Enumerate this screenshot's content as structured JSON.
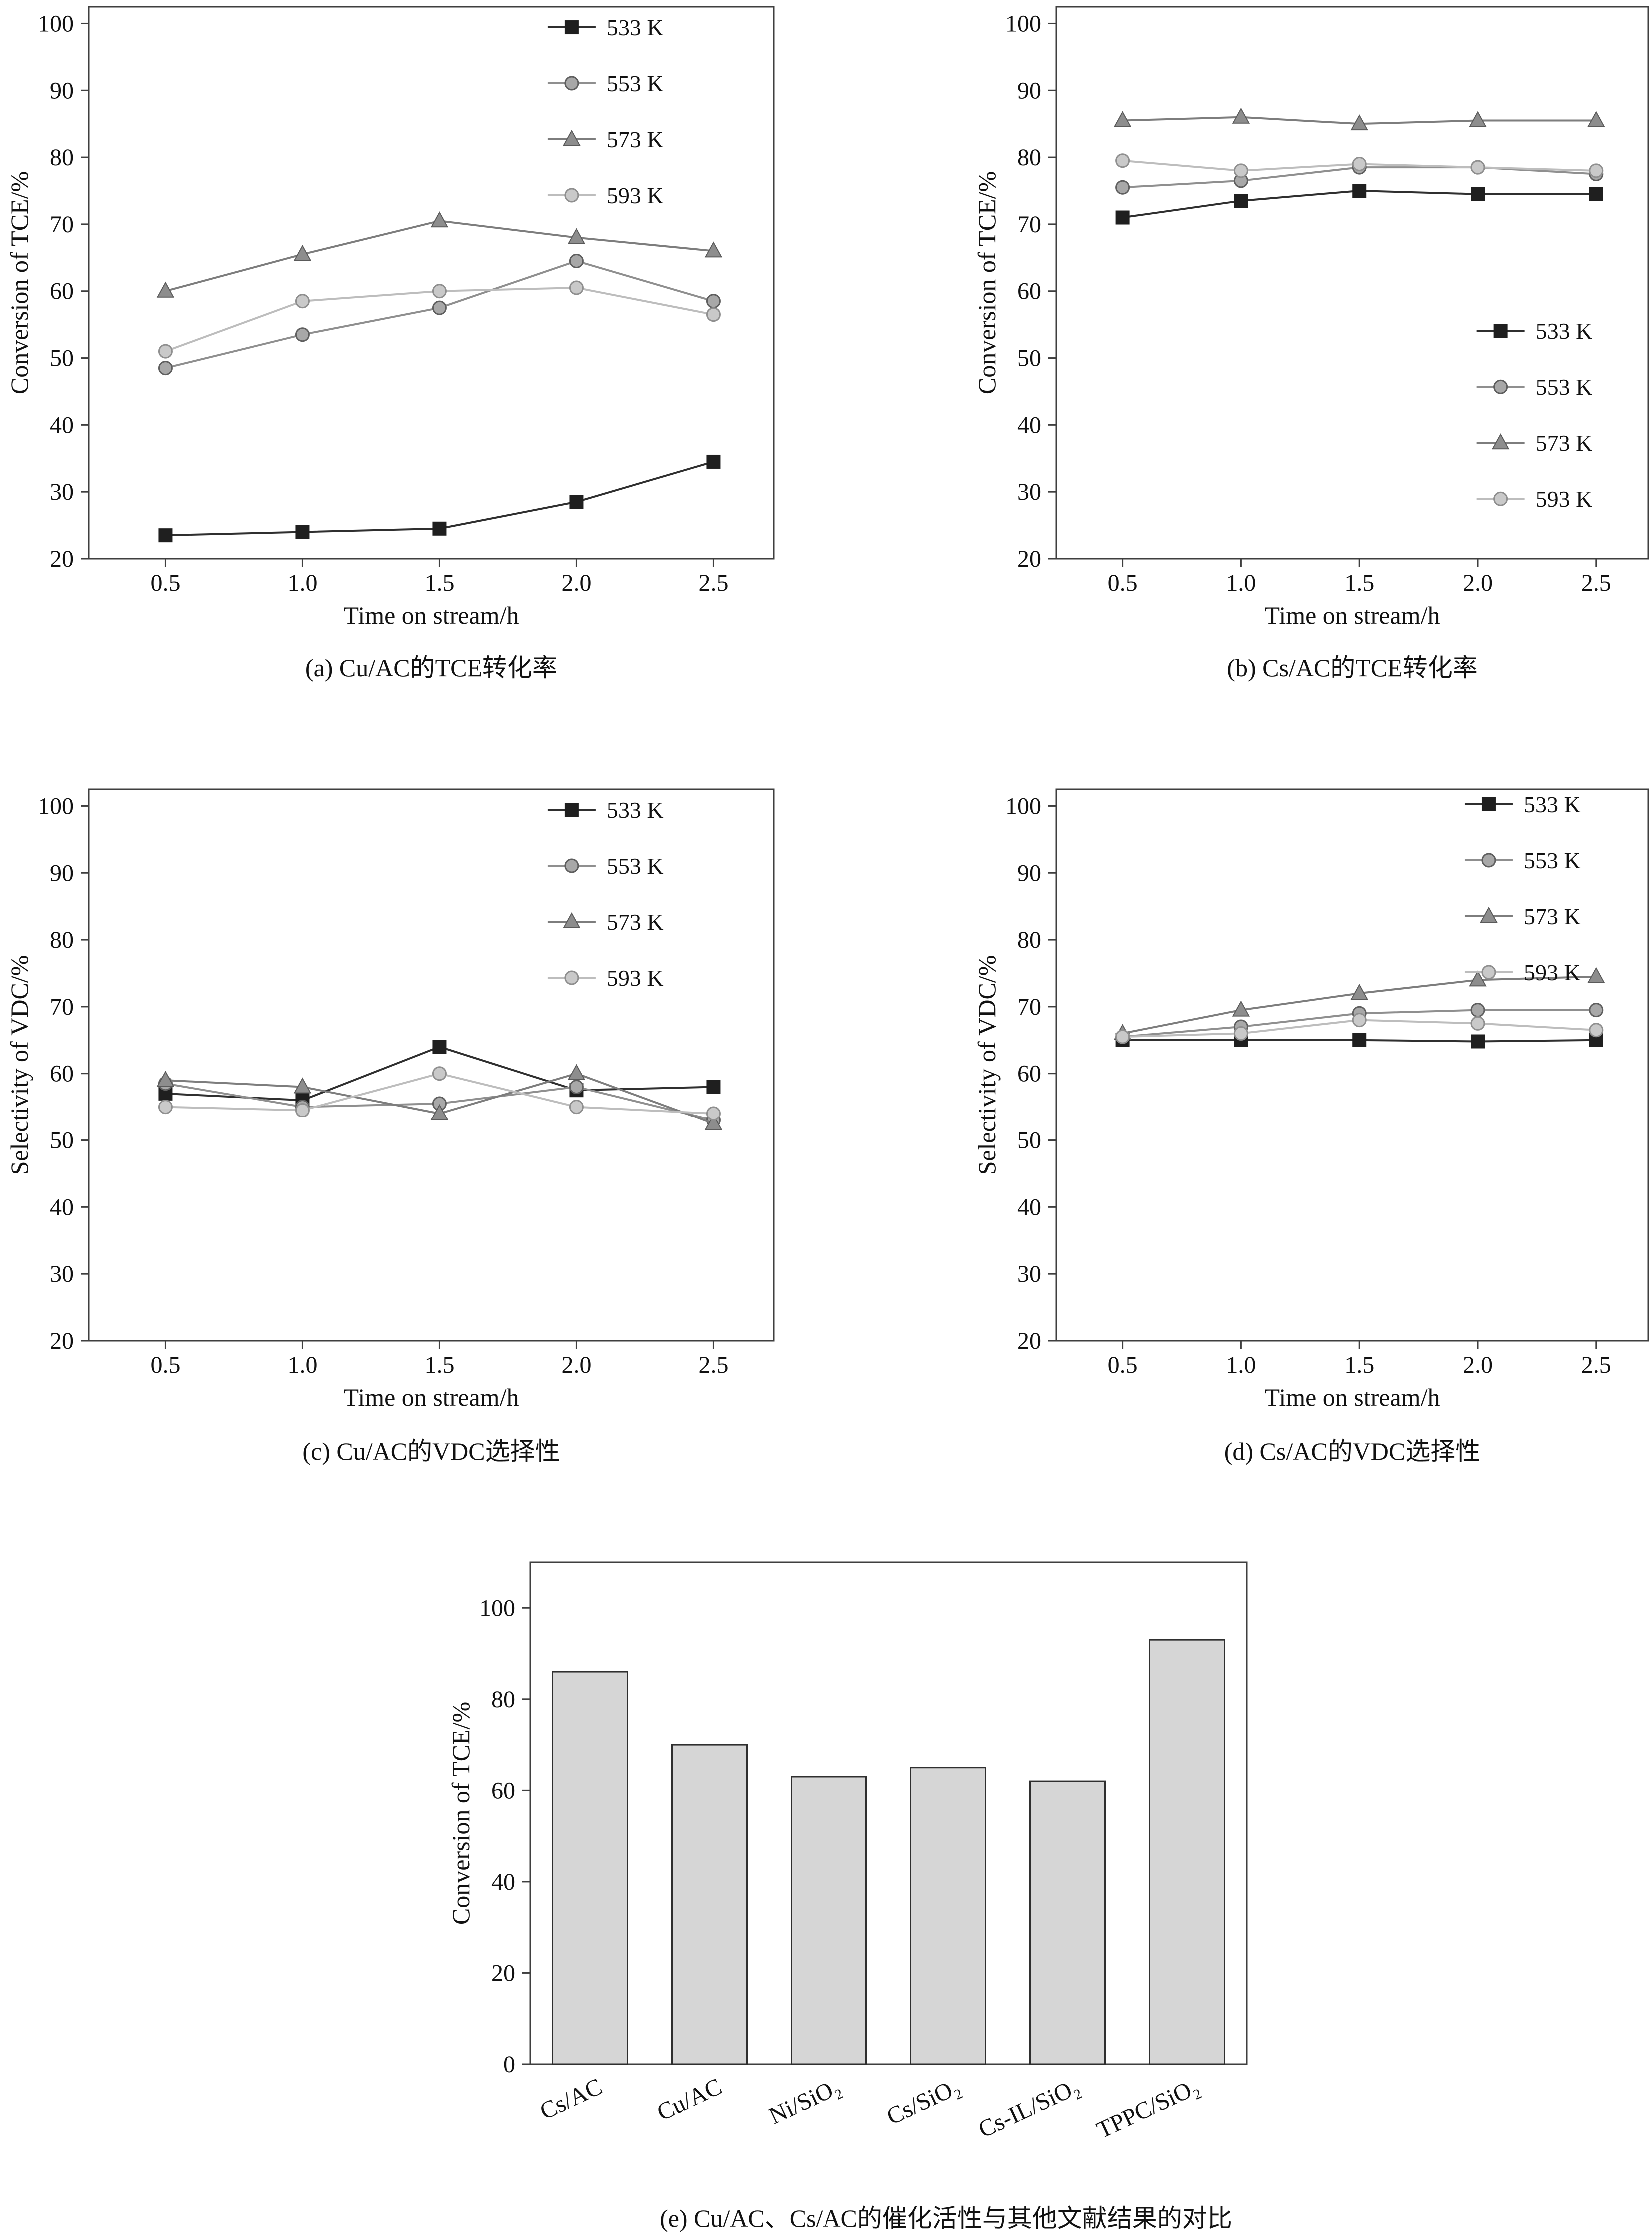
{
  "charts": [
    {
      "id": "a",
      "type": "line",
      "caption": "(a) Cu/AC的TCE转化率",
      "xlabel": "Time on stream/h",
      "ylabel": "Conversion of  TCE/%",
      "x": [
        0.5,
        1.0,
        1.5,
        2.0,
        2.5
      ],
      "ylim": [
        20,
        100
      ],
      "ytick_step": 10,
      "series": [
        {
          "name": "533 K",
          "marker": "square",
          "line": "#2f2f2f",
          "fill": "#1f1f1f",
          "stroke": "#1f1f1f",
          "values": [
            23.5,
            24.0,
            24.5,
            28.5,
            34.5
          ]
        },
        {
          "name": "553 K",
          "marker": "circle",
          "line": "#8f8f8f",
          "fill": "#a8a8a8",
          "stroke": "#5f5f5f",
          "values": [
            48.5,
            53.5,
            57.5,
            64.5,
            58.5
          ]
        },
        {
          "name": "573 K",
          "marker": "triangle",
          "line": "#7d7d7d",
          "fill": "#8d8d8d",
          "stroke": "#5a5a5a",
          "values": [
            60.0,
            65.5,
            70.5,
            68.0,
            66.0
          ]
        },
        {
          "name": "593 K",
          "marker": "circle",
          "line": "#bdbdbd",
          "fill": "#c9c9c9",
          "stroke": "#8f8f8f",
          "values": [
            51.0,
            58.5,
            60.0,
            60.5,
            56.5
          ]
        }
      ]
    },
    {
      "id": "b",
      "type": "line",
      "caption": "(b) Cs/AC的TCE转化率",
      "xlabel": "Time on stream/h",
      "ylabel": "Conversion of  TCE/%",
      "x": [
        0.5,
        1.0,
        1.5,
        2.0,
        2.5
      ],
      "ylim": [
        20,
        100
      ],
      "ytick_step": 10,
      "series": [
        {
          "name": "533 K",
          "marker": "square",
          "line": "#2f2f2f",
          "fill": "#1f1f1f",
          "stroke": "#1f1f1f",
          "values": [
            71.0,
            73.5,
            75.0,
            74.5,
            74.5
          ]
        },
        {
          "name": "553 K",
          "marker": "circle",
          "line": "#8f8f8f",
          "fill": "#a8a8a8",
          "stroke": "#5f5f5f",
          "values": [
            75.5,
            76.5,
            78.5,
            78.5,
            77.5
          ]
        },
        {
          "name": "573 K",
          "marker": "triangle",
          "line": "#7d7d7d",
          "fill": "#8d8d8d",
          "stroke": "#5a5a5a",
          "values": [
            85.5,
            86.0,
            85.0,
            85.5,
            85.5
          ]
        },
        {
          "name": "593 K",
          "marker": "circle",
          "line": "#bdbdbd",
          "fill": "#c9c9c9",
          "stroke": "#8f8f8f",
          "values": [
            79.5,
            78.0,
            79.0,
            78.5,
            78.0
          ]
        }
      ]
    },
    {
      "id": "c",
      "type": "line",
      "caption": "(c) Cu/AC的VDC选择性",
      "xlabel": "Time on stream/h",
      "ylabel": "Selectivity of  VDC/%",
      "x": [
        0.5,
        1.0,
        1.5,
        2.0,
        2.5
      ],
      "ylim": [
        20,
        100
      ],
      "ytick_step": 10,
      "series": [
        {
          "name": "533 K",
          "marker": "square",
          "line": "#2f2f2f",
          "fill": "#1f1f1f",
          "stroke": "#1f1f1f",
          "values": [
            57.0,
            56.0,
            64.0,
            57.5,
            58.0
          ]
        },
        {
          "name": "553 K",
          "marker": "circle",
          "line": "#8f8f8f",
          "fill": "#a8a8a8",
          "stroke": "#5f5f5f",
          "values": [
            58.5,
            55.0,
            55.5,
            58.0,
            53.0
          ]
        },
        {
          "name": "573 K",
          "marker": "triangle",
          "line": "#7d7d7d",
          "fill": "#8d8d8d",
          "stroke": "#5a5a5a",
          "values": [
            59.0,
            58.0,
            54.0,
            60.0,
            52.5
          ]
        },
        {
          "name": "593 K",
          "marker": "circle",
          "line": "#bdbdbd",
          "fill": "#c9c9c9",
          "stroke": "#8f8f8f",
          "values": [
            55.0,
            54.5,
            60.0,
            55.0,
            54.0
          ]
        }
      ]
    },
    {
      "id": "d",
      "type": "line",
      "caption": "(d) Cs/AC的VDC选择性",
      "xlabel": "Time on stream/h",
      "ylabel": "Selectivity of  VDC/%",
      "x": [
        0.5,
        1.0,
        1.5,
        2.0,
        2.5
      ],
      "ylim": [
        20,
        100
      ],
      "ytick_step": 10,
      "series": [
        {
          "name": "533 K",
          "marker": "square",
          "line": "#2f2f2f",
          "fill": "#1f1f1f",
          "stroke": "#1f1f1f",
          "values": [
            65.0,
            65.0,
            65.0,
            64.8,
            65.0
          ]
        },
        {
          "name": "553 K",
          "marker": "circle",
          "line": "#8f8f8f",
          "fill": "#a8a8a8",
          "stroke": "#5f5f5f",
          "values": [
            65.5,
            67.0,
            69.0,
            69.5,
            69.5
          ]
        },
        {
          "name": "573 K",
          "marker": "triangle",
          "line": "#7d7d7d",
          "fill": "#8d8d8d",
          "stroke": "#5a5a5a",
          "values": [
            66.0,
            69.5,
            72.0,
            74.0,
            74.5
          ]
        },
        {
          "name": "593 K",
          "marker": "circle",
          "line": "#bdbdbd",
          "fill": "#c9c9c9",
          "stroke": "#8f8f8f",
          "values": [
            65.5,
            66.0,
            68.0,
            67.5,
            66.5
          ]
        }
      ]
    },
    {
      "id": "e",
      "type": "bar",
      "caption": "(e) Cu/AC、Cs/AC的催化活性与其他文献结果的对比",
      "ylabel": "Conversion of TCE/%",
      "categories": [
        "Cs/AC",
        "Cu/AC",
        "Ni/SiO₂",
        "Cs/SiO₂",
        "Cs-IL/SiO₂",
        "TPPC/SiO₂"
      ],
      "values": [
        86,
        70,
        63,
        65,
        62,
        93
      ],
      "ylim": [
        0,
        100
      ],
      "ytick_step": 20,
      "bar_color": "#d6d6d6"
    }
  ],
  "chart_data": [
    {
      "type": "line",
      "title": "(a) Cu/AC的TCE转化率",
      "xlabel": "Time on stream/h",
      "ylabel": "Conversion of TCE/%",
      "x": [
        0.5,
        1.0,
        1.5,
        2.0,
        2.5
      ],
      "ylim": [
        20,
        100
      ],
      "legend_position": "top-right",
      "grid": false,
      "series": [
        {
          "name": "533 K",
          "values": [
            23.5,
            24.0,
            24.5,
            28.5,
            34.5
          ]
        },
        {
          "name": "553 K",
          "values": [
            48.5,
            53.5,
            57.5,
            64.5,
            58.5
          ]
        },
        {
          "name": "573 K",
          "values": [
            60.0,
            65.5,
            70.5,
            68.0,
            66.0
          ]
        },
        {
          "name": "593 K",
          "values": [
            51.0,
            58.5,
            60.0,
            60.5,
            56.5
          ]
        }
      ]
    },
    {
      "type": "line",
      "title": "(b) Cs/AC的TCE转化率",
      "xlabel": "Time on stream/h",
      "ylabel": "Conversion of TCE/%",
      "x": [
        0.5,
        1.0,
        1.5,
        2.0,
        2.5
      ],
      "ylim": [
        20,
        100
      ],
      "legend_position": "middle-right",
      "grid": false,
      "series": [
        {
          "name": "533 K",
          "values": [
            71.0,
            73.5,
            75.0,
            74.5,
            74.5
          ]
        },
        {
          "name": "553 K",
          "values": [
            75.5,
            76.5,
            78.5,
            78.5,
            77.5
          ]
        },
        {
          "name": "573 K",
          "values": [
            85.5,
            86.0,
            85.0,
            85.5,
            85.5
          ]
        },
        {
          "name": "593 K",
          "values": [
            79.5,
            78.0,
            79.0,
            78.5,
            78.0
          ]
        }
      ]
    },
    {
      "type": "line",
      "title": "(c) Cu/AC的VDC选择性",
      "xlabel": "Time on stream/h",
      "ylabel": "Selectivity of VDC/%",
      "x": [
        0.5,
        1.0,
        1.5,
        2.0,
        2.5
      ],
      "ylim": [
        20,
        100
      ],
      "legend_position": "top-right",
      "grid": false,
      "series": [
        {
          "name": "533 K",
          "values": [
            57.0,
            56.0,
            64.0,
            57.5,
            58.0
          ]
        },
        {
          "name": "553 K",
          "values": [
            58.5,
            55.0,
            55.5,
            58.0,
            53.0
          ]
        },
        {
          "name": "573 K",
          "values": [
            59.0,
            58.0,
            54.0,
            60.0,
            52.5
          ]
        },
        {
          "name": "593 K",
          "values": [
            55.0,
            54.5,
            60.0,
            55.0,
            54.0
          ]
        }
      ]
    },
    {
      "type": "line",
      "title": "(d) Cs/AC的VDC选择性",
      "xlabel": "Time on stream/h",
      "ylabel": "Selectivity of VDC/%",
      "x": [
        0.5,
        1.0,
        1.5,
        2.0,
        2.5
      ],
      "ylim": [
        20,
        100
      ],
      "legend_position": "top-right",
      "grid": false,
      "series": [
        {
          "name": "533 K",
          "values": [
            65.0,
            65.0,
            65.0,
            64.8,
            65.0
          ]
        },
        {
          "name": "553 K",
          "values": [
            65.5,
            67.0,
            69.0,
            69.5,
            69.5
          ]
        },
        {
          "name": "573 K",
          "values": [
            66.0,
            69.5,
            72.0,
            74.0,
            74.5
          ]
        },
        {
          "name": "593 K",
          "values": [
            65.5,
            66.0,
            68.0,
            67.5,
            66.5
          ]
        }
      ]
    },
    {
      "type": "bar",
      "title": "(e) Cu/AC、Cs/AC的催化活性与其他文献结果的对比",
      "ylabel": "Conversion of TCE/%",
      "ylim": [
        0,
        100
      ],
      "grid": false,
      "categories": [
        "Cs/AC",
        "Cu/AC",
        "Ni/SiO₂",
        "Cs/SiO₂",
        "Cs-IL/SiO₂",
        "TPPC/SiO₂"
      ],
      "values": [
        86,
        70,
        63,
        65,
        62,
        93
      ]
    }
  ]
}
